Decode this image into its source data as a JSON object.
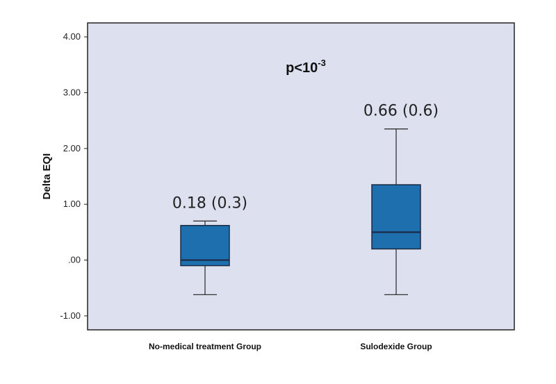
{
  "chart_data": {
    "type": "boxplot",
    "title": "",
    "xlabel": "",
    "ylabel": "Delta EQI",
    "ylim": [
      -1.25,
      4.25
    ],
    "y_ticks": [
      4.0,
      3.0,
      2.0,
      1.0,
      0.0,
      -1.0
    ],
    "y_tick_labels": [
      "4.00",
      "3.00",
      "2.00",
      "1.00",
      ".00",
      "-1.00"
    ],
    "categories": [
      "No-medical treatment Group",
      "Sulodexide Group"
    ],
    "boxes": [
      {
        "category": "No-medical treatment Group",
        "whisker_low": -0.62,
        "q1": -0.1,
        "median": 0.0,
        "q3": 0.62,
        "whisker_high": 0.7,
        "annotation": "0.18 (0.3)"
      },
      {
        "category": "Sulodexide Group",
        "whisker_low": -0.62,
        "q1": 0.2,
        "median": 0.5,
        "q3": 1.35,
        "whisker_high": 2.35,
        "annotation": "0.66 (0.6)"
      }
    ],
    "significance": {
      "prefix": "p<10",
      "exponent": "-3"
    },
    "grid": false,
    "colors": {
      "plot_background": "#dde0ef",
      "box_fill": "#1d6fae",
      "box_stroke": "#1b2a44",
      "frame": "#222222"
    }
  }
}
